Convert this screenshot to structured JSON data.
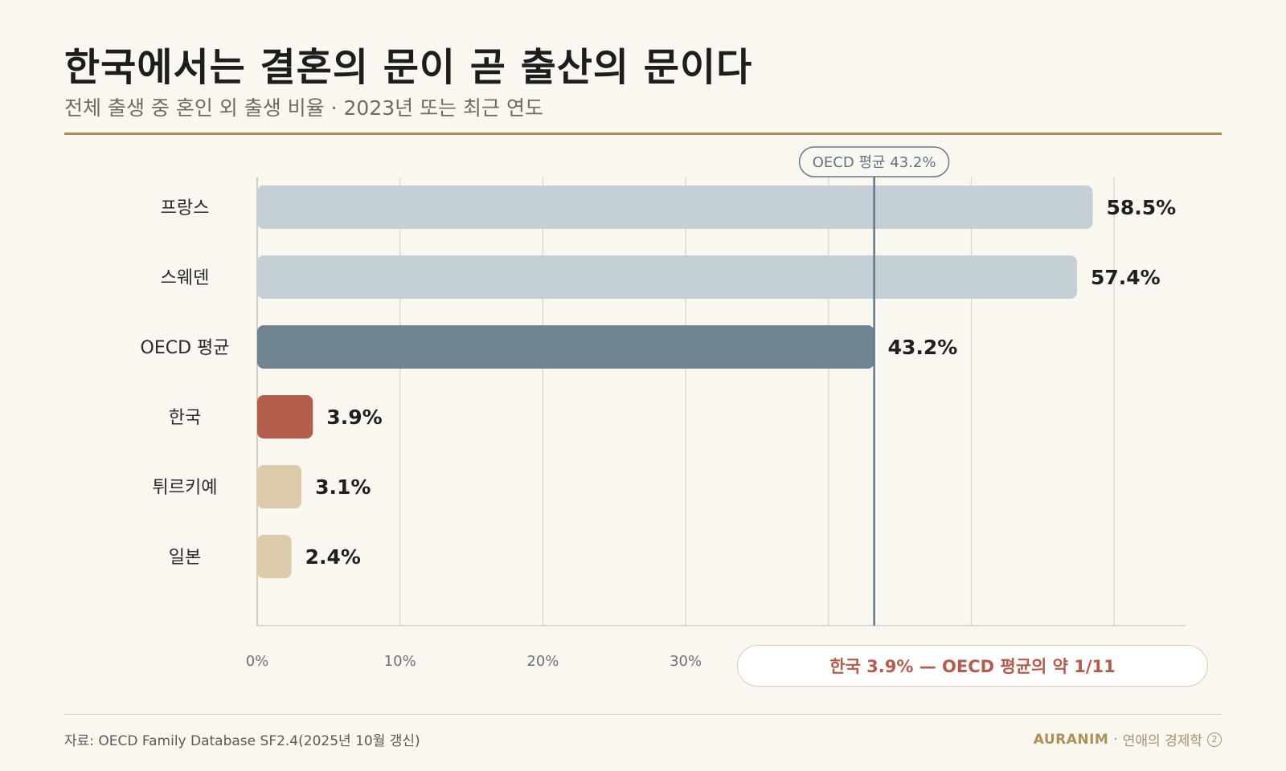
{
  "header": {
    "title": "한국에서는 결혼의 문이 곧 출산의 문이다",
    "subtitle": "전체 출생 중 혼인 외 출생 비율 · 2023년 또는 최근 연도"
  },
  "chart_data": {
    "type": "bar",
    "orientation": "horizontal",
    "title": "한국에서는 결혼의 문이 곧 출산의 문이다",
    "subtitle": "전체 출생 중 혼인 외 출생 비율 · 2023년 또는 최근 연도",
    "categories": [
      "프랑스",
      "스웨덴",
      "OECD 평균",
      "한국",
      "튀르키예",
      "일본"
    ],
    "values": [
      58.5,
      57.4,
      43.2,
      3.9,
      3.1,
      2.4
    ],
    "value_labels": [
      "58.5%",
      "57.4%",
      "43.2%",
      "3.9%",
      "3.1%",
      "2.4%"
    ],
    "bar_colors": [
      "#c4d0d6",
      "#c4d0d6",
      "#6f8391",
      "#b35e4c",
      "#dccbaa",
      "#dccbaa"
    ],
    "x_ticks": [
      0,
      10,
      20,
      30
    ],
    "x_tick_labels": [
      "0%",
      "10%",
      "20%",
      "30%"
    ],
    "xlim": [
      0,
      65
    ],
    "grid": true,
    "reference_line": {
      "value": 43.2,
      "label": "OECD 평균 43.2%",
      "color": "#61798a"
    },
    "annotation": "한국 3.9% — OECD 평균의 약 1/11"
  },
  "footer": {
    "source": "자료: OECD Family Database SF2.4(2025년 10월 갱신)",
    "brand": "AURANIM",
    "separator": "·",
    "series": "연애의 경제학",
    "page_number": "2"
  },
  "colors": {
    "background": "#faf7f1",
    "accent_rule": "#a4915d",
    "highlight": "#b35c4d",
    "gridline": "#dfdad0"
  }
}
